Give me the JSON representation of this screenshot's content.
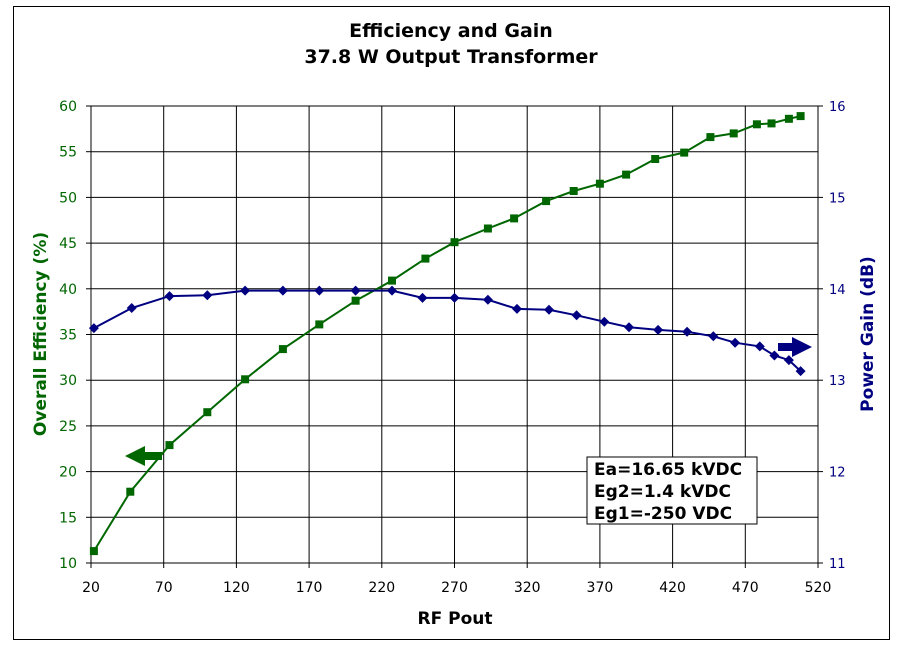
{
  "chart_data": {
    "type": "line",
    "title": "Efficiency and Gain",
    "subtitle": "37.8 W Output Transformer",
    "xlabel": "RF Pout",
    "ylabel": "Overall Efficiency (%)",
    "y2label": "Power Gain (dB)",
    "xlim": [
      20,
      520
    ],
    "ylim": [
      10,
      60
    ],
    "y2lim": [
      11,
      16
    ],
    "xticks": [
      "20",
      "70",
      "120",
      "170",
      "220",
      "270",
      "320",
      "370",
      "420",
      "470",
      "520"
    ],
    "yticks": [
      "10",
      "15",
      "20",
      "25",
      "30",
      "35",
      "40",
      "45",
      "50",
      "55",
      "60"
    ],
    "y2ticks": [
      "11",
      "12",
      "13",
      "14",
      "15",
      "16"
    ],
    "grid": true,
    "legend": "none",
    "colors": {
      "efficiency": "#006600",
      "gain": "#000080"
    },
    "series": [
      {
        "axis": "left",
        "marker": "square",
        "x": [
          22,
          47,
          74,
          100,
          126,
          152,
          177,
          202,
          227,
          250,
          270,
          293,
          311,
          333,
          352,
          370,
          388,
          408,
          428,
          446,
          462,
          478,
          488,
          500,
          508
        ],
        "values": [
          11.3,
          17.8,
          22.9,
          26.5,
          30.1,
          33.4,
          36.1,
          38.7,
          40.9,
          43.3,
          45.1,
          46.6,
          47.7,
          49.6,
          50.7,
          51.5,
          52.5,
          54.2,
          54.9,
          56.6,
          57.0,
          58.0,
          58.1,
          58.6,
          58.9
        ]
      },
      {
        "axis": "right",
        "marker": "diamond",
        "x": [
          22,
          48,
          74,
          100,
          126,
          152,
          177,
          202,
          227,
          248,
          270,
          293,
          313,
          335,
          354,
          373,
          390,
          410,
          430,
          448,
          463,
          480,
          490,
          500,
          508
        ],
        "values": [
          13.57,
          13.79,
          13.92,
          13.93,
          13.98,
          13.98,
          13.98,
          13.98,
          13.98,
          13.9,
          13.9,
          13.88,
          13.78,
          13.77,
          13.71,
          13.64,
          13.58,
          13.55,
          13.53,
          13.48,
          13.41,
          13.37,
          13.27,
          13.22,
          13.1
        ]
      }
    ],
    "annotations": [
      "Ea=16.65 kVDC",
      "Eg2=1.4 kVDC",
      "Eg1=-250 VDC"
    ]
  }
}
